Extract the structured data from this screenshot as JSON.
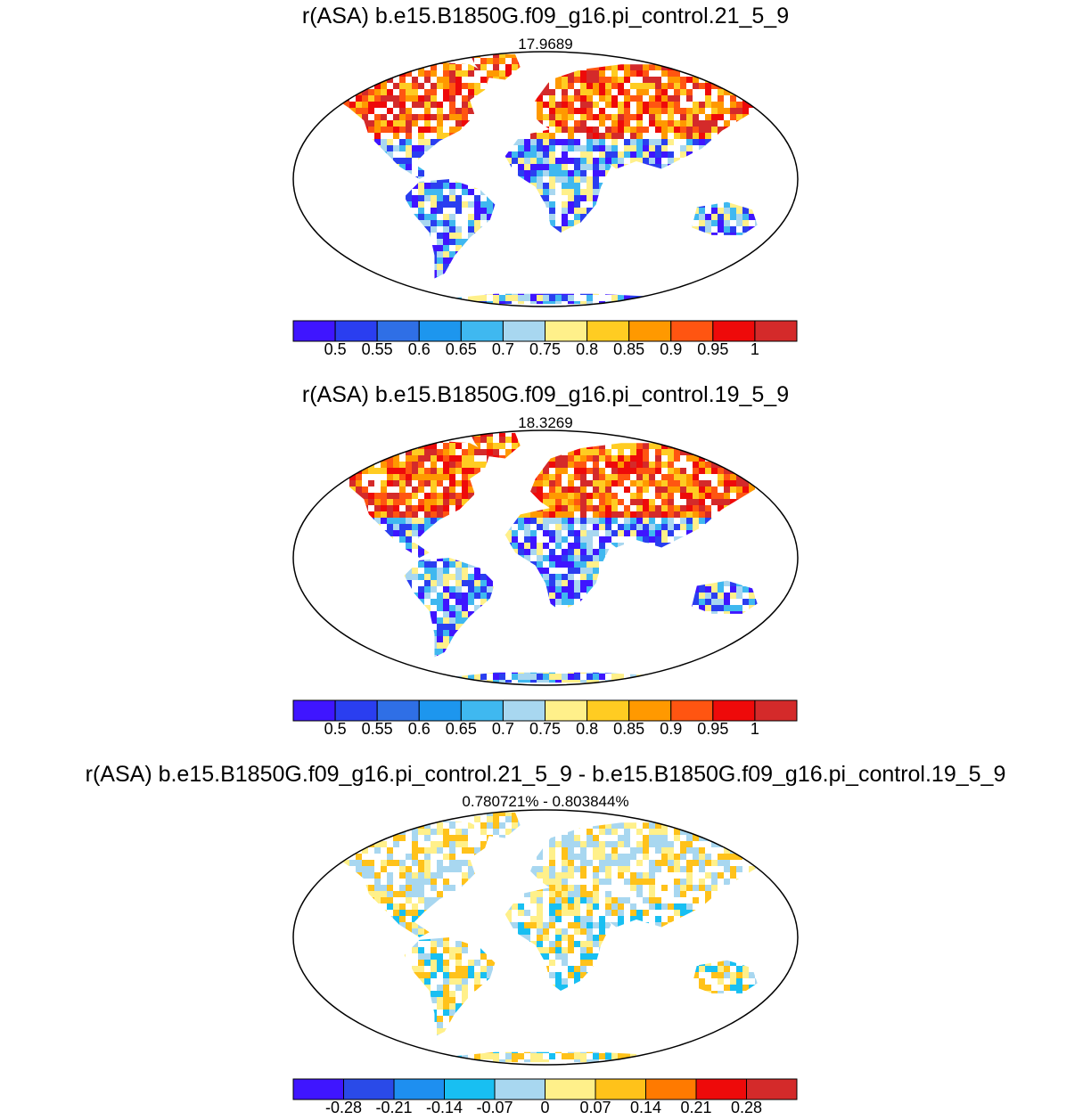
{
  "panels": [
    {
      "title": "r(ASA) b.e15.B1850G.f09_g16.pi_control.21_5_9",
      "subtitle": "17.9689",
      "colorbar": {
        "colors": [
          "#3f15ff",
          "#2a3ef0",
          "#2f6fe6",
          "#1d96ee",
          "#3fb8f0",
          "#a8d7f0",
          "#fff08a",
          "#ffcc22",
          "#ff9900",
          "#ff5511",
          "#ee0a0a",
          "#d42a2a"
        ],
        "tick_labels": [
          "0.5",
          "0.55",
          "0.6",
          "0.65",
          "0.7",
          "0.75",
          "0.8",
          "0.85",
          "0.9",
          "0.95",
          "1"
        ]
      }
    },
    {
      "title": "r(ASA) b.e15.B1850G.f09_g16.pi_control.19_5_9",
      "subtitle": "18.3269",
      "colorbar": {
        "colors": [
          "#3f15ff",
          "#2a3ef0",
          "#2f6fe6",
          "#1d96ee",
          "#3fb8f0",
          "#a8d7f0",
          "#fff08a",
          "#ffcc22",
          "#ff9900",
          "#ff5511",
          "#ee0a0a",
          "#d42a2a"
        ],
        "tick_labels": [
          "0.5",
          "0.55",
          "0.6",
          "0.65",
          "0.7",
          "0.75",
          "0.8",
          "0.85",
          "0.9",
          "0.95",
          "1"
        ]
      }
    },
    {
      "title": "r(ASA) b.e15.B1850G.f09_g16.pi_control.21_5_9 - b.e15.B1850G.f09_g16.pi_control.19_5_9",
      "subtitle": "0.780721% - 0.803844%",
      "colorbar": {
        "colors": [
          "#3f15ff",
          "#2a4ae8",
          "#1e8ff0",
          "#18bff2",
          "#a8d7f0",
          "#fff08a",
          "#ffc21a",
          "#ff7a00",
          "#ee0a0a",
          "#d42a2a"
        ],
        "tick_labels": [
          "-0.28",
          "-0.21",
          "-0.14",
          "-0.07",
          "0",
          "0.07",
          "0.14",
          "0.21",
          "0.28"
        ]
      }
    }
  ]
}
